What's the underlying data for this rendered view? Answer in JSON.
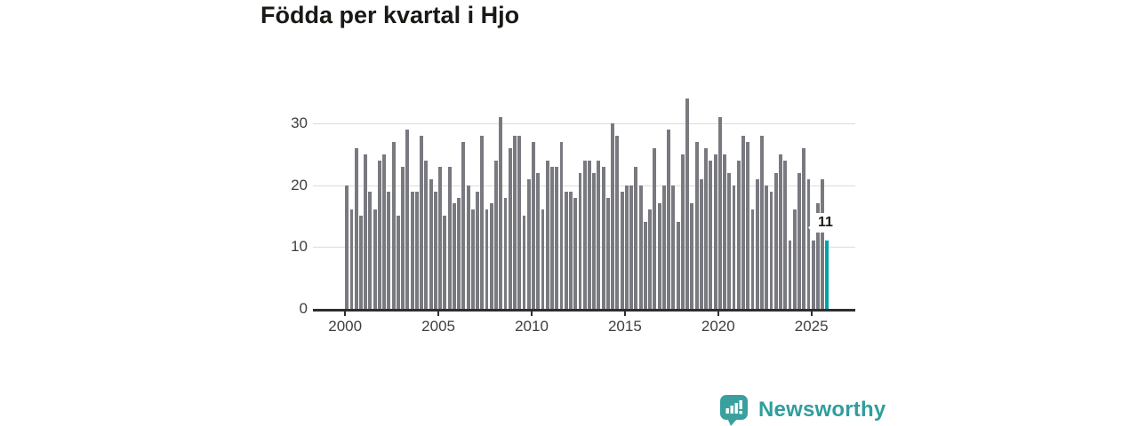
{
  "title": "Födda per kvartal i Hjo",
  "chart_data": {
    "type": "bar",
    "title": "Födda per kvartal i Hjo",
    "x_frequency": "quarterly",
    "period_start": "2000 Q1",
    "period_end": "2025 Q4",
    "x_tick_labels": [
      "2000",
      "2005",
      "2010",
      "2015",
      "2020",
      "2025"
    ],
    "y_tick_labels": [
      "0",
      "10",
      "20",
      "30"
    ],
    "ylim": [
      0,
      35
    ],
    "grid": true,
    "series": [
      {
        "name": "Födda per kvartal",
        "values": [
          20,
          16,
          26,
          15,
          25,
          19,
          16,
          24,
          25,
          19,
          27,
          15,
          23,
          29,
          19,
          19,
          28,
          24,
          21,
          19,
          23,
          15,
          23,
          17,
          18,
          27,
          20,
          16,
          19,
          28,
          16,
          17,
          24,
          31,
          18,
          26,
          28,
          28,
          15,
          21,
          27,
          22,
          16,
          24,
          23,
          23,
          27,
          19,
          19,
          18,
          22,
          24,
          24,
          22,
          24,
          23,
          18,
          30,
          28,
          19,
          20,
          20,
          23,
          20,
          14,
          16,
          26,
          17,
          20,
          29,
          20,
          14,
          25,
          34,
          17,
          27,
          21,
          26,
          24,
          25,
          31,
          25,
          22,
          20,
          24,
          28,
          27,
          16,
          21,
          28,
          20,
          19,
          22,
          25,
          24,
          11,
          16,
          22,
          26,
          21,
          11,
          17,
          21,
          11
        ]
      }
    ],
    "highlight": {
      "index": 103,
      "value": 11,
      "label": "11"
    }
  },
  "colors": {
    "bar": "#797980",
    "highlight_bar": "#00a2a4",
    "grid": "#dcdcdc",
    "axis": "#2e2e2e",
    "tick_text": "#3f3f3f",
    "title_text": "#181a16",
    "brand": "#2f9e9c"
  },
  "branding": {
    "name": "Newsworthy",
    "icon": "newsworthy-speech-bubble-chart-icon"
  }
}
